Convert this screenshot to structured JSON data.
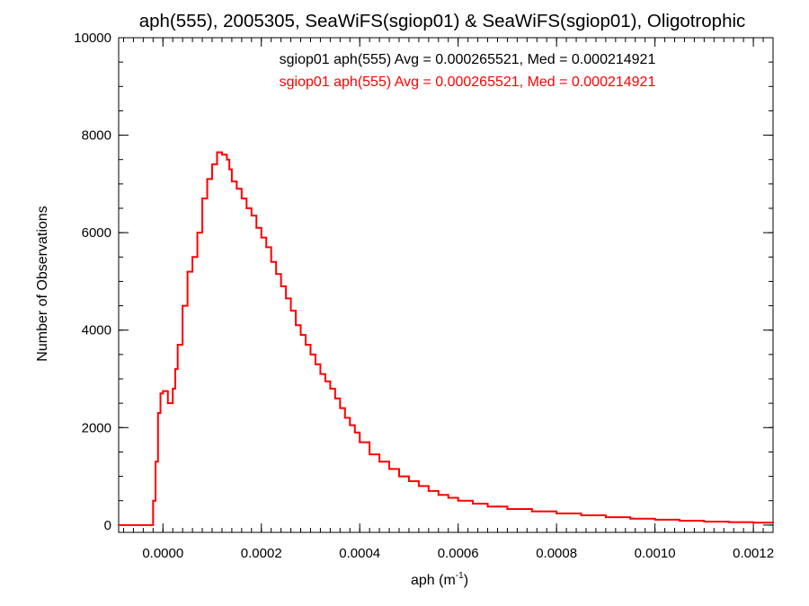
{
  "chart_data": {
    "type": "line",
    "title": "aph(555), 2005305, SeaWiFS(sgiop01) & SeaWiFS(sgiop01), Oligotrophic",
    "xlabel": "aph (m",
    "xlabel_sup": "-1",
    "xlabel_tail": ")",
    "ylabel": "Number of Observations",
    "xlim": [
      -9e-05,
      0.00124
    ],
    "ylim": [
      -150,
      10000
    ],
    "xticks": [
      0.0,
      0.0002,
      0.0004,
      0.0006,
      0.0008,
      0.001,
      0.0012
    ],
    "xtick_labels": [
      "0.0000",
      "0.0002",
      "0.0004",
      "0.0006",
      "0.0008",
      "0.0010",
      "0.0012"
    ],
    "yticks": [
      0,
      2000,
      4000,
      6000,
      8000,
      10000
    ],
    "ytick_labels": [
      "0",
      "2000",
      "4000",
      "6000",
      "8000",
      "10000"
    ],
    "grid": false,
    "legend": [
      {
        "text": "sgiop01 aph(555) Avg = 0.000265521, Med = 0.000214921",
        "color": "#000000"
      },
      {
        "text": "sgiop01 aph(555) Avg = 0.000265521, Med = 0.000214921",
        "color": "#ff0000"
      }
    ],
    "series": [
      {
        "color": "#ff0000",
        "step": true,
        "x": [
          -9e-05,
          -2e-05,
          -1.5e-05,
          -1e-05,
          -5e-06,
          0.0,
          1e-05,
          2e-05,
          2.5e-05,
          3e-05,
          4e-05,
          5e-05,
          6e-05,
          7e-05,
          8e-05,
          9e-05,
          0.0001,
          0.00011,
          0.00012,
          0.00013,
          0.000135,
          0.00014,
          0.00015,
          0.00016,
          0.00017,
          0.00018,
          0.00019,
          0.0002,
          0.00021,
          0.00022,
          0.00023,
          0.00024,
          0.00025,
          0.00026,
          0.00027,
          0.00028,
          0.00029,
          0.0003,
          0.00031,
          0.00032,
          0.00033,
          0.00034,
          0.00035,
          0.00036,
          0.00037,
          0.00038,
          0.00039,
          0.0004,
          0.00042,
          0.00044,
          0.00046,
          0.00048,
          0.0005,
          0.00052,
          0.00054,
          0.00056,
          0.00058,
          0.0006,
          0.00063,
          0.00066,
          0.0007,
          0.00075,
          0.0008,
          0.00085,
          0.0009,
          0.00095,
          0.001,
          0.00105,
          0.0011,
          0.00115,
          0.0012,
          0.00124
        ],
        "y": [
          0,
          500,
          1300,
          2300,
          2700,
          2750,
          2500,
          2800,
          3200,
          3700,
          4500,
          5200,
          5500,
          6000,
          6700,
          7100,
          7400,
          7650,
          7600,
          7500,
          7300,
          7050,
          6900,
          6700,
          6500,
          6350,
          6100,
          5900,
          5700,
          5400,
          5150,
          4900,
          4650,
          4400,
          4100,
          3900,
          3700,
          3500,
          3300,
          3100,
          2950,
          2800,
          2600,
          2400,
          2200,
          2050,
          1900,
          1700,
          1450,
          1300,
          1150,
          1000,
          900,
          800,
          700,
          620,
          560,
          500,
          440,
          380,
          330,
          280,
          240,
          200,
          160,
          130,
          110,
          90,
          70,
          60,
          50,
          40
        ]
      }
    ]
  }
}
